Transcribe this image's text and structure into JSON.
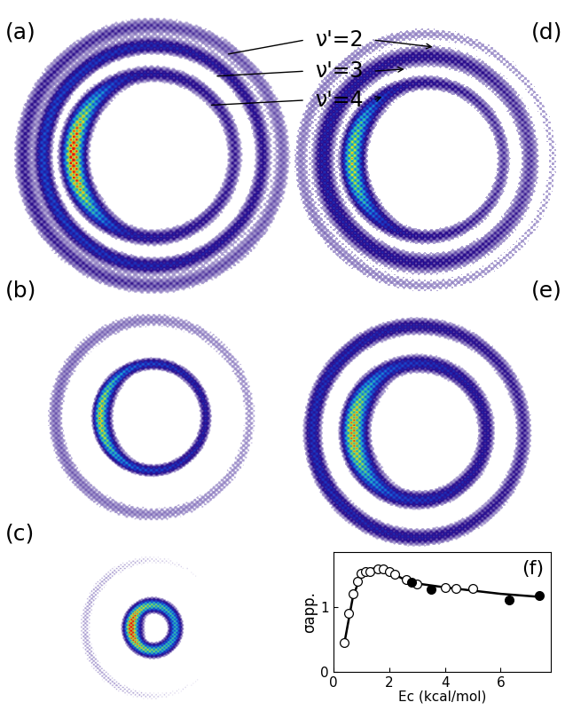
{
  "panels": [
    {
      "label": "(a)"
    },
    {
      "label": "(b)"
    },
    {
      "label": "(c)"
    },
    {
      "label": "(d)"
    },
    {
      "label": "(e)"
    }
  ],
  "annotations": [
    "ν'=2",
    "ν'=3",
    "ν'=4"
  ],
  "chart_data": {
    "type": "scatter",
    "label": "(f)",
    "x_label": "Ec (kcal/mol)",
    "y_label": "σapp.",
    "xlim": [
      0,
      7.8
    ],
    "xticks": [
      0,
      2,
      4,
      6
    ],
    "ylim": [
      0,
      1.85
    ],
    "yticks": [
      0,
      1
    ],
    "series": [
      {
        "type": "scatter",
        "marker": "open circle",
        "color": "#000000",
        "x": [
          0.4,
          0.55,
          0.7,
          0.85,
          1.0,
          1.15,
          1.3,
          1.6,
          1.8,
          2.0,
          2.2,
          2.6,
          3.0,
          4.0,
          4.4,
          5.0
        ],
        "values": [
          0.45,
          0.9,
          1.2,
          1.4,
          1.52,
          1.55,
          1.55,
          1.58,
          1.58,
          1.55,
          1.5,
          1.42,
          1.35,
          1.3,
          1.28,
          1.28
        ]
      },
      {
        "type": "scatter",
        "marker": "filled circle",
        "color": "#000000",
        "x": [
          2.8,
          3.5,
          6.3,
          7.4
        ],
        "values": [
          1.38,
          1.27,
          1.1,
          1.17
        ]
      },
      {
        "type": "line",
        "line_style": "solid",
        "color": "#000000",
        "x": [
          0.4,
          0.7,
          1.0,
          1.3,
          1.6,
          2.0,
          2.5,
          3.0,
          4.0,
          5.0,
          6.0,
          7.5
        ],
        "values": [
          0.45,
          1.15,
          1.5,
          1.58,
          1.6,
          1.55,
          1.43,
          1.36,
          1.3,
          1.25,
          1.2,
          1.15
        ]
      }
    ]
  }
}
